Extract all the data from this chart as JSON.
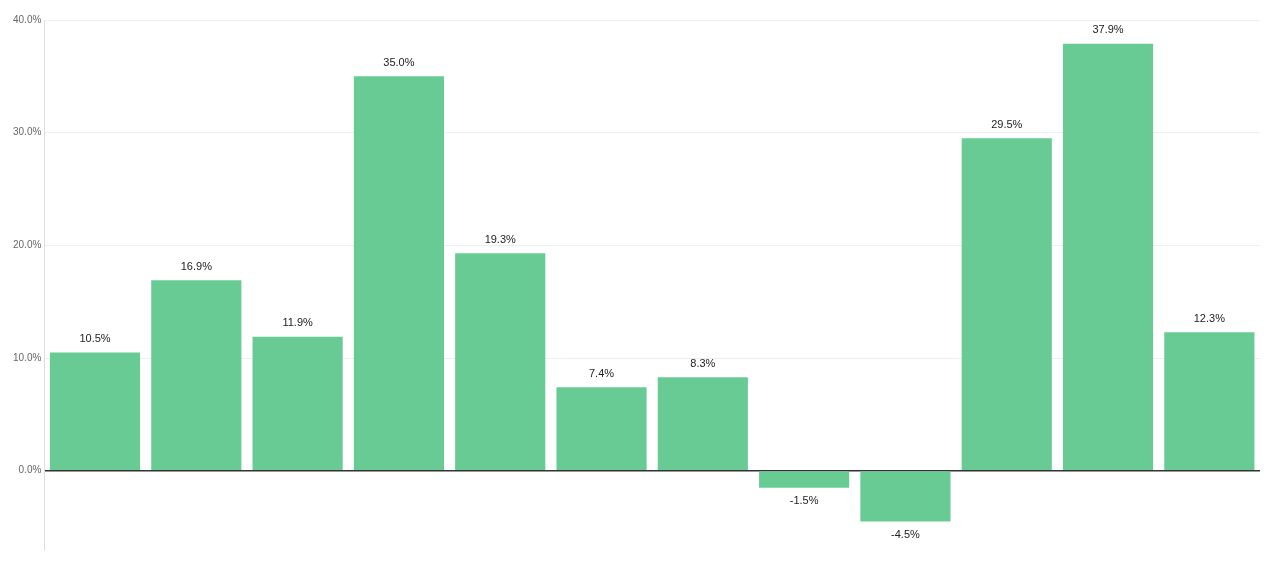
{
  "chart_data": {
    "type": "bar",
    "categories": [
      null,
      null,
      null,
      null,
      null,
      null,
      null,
      null,
      null,
      null,
      null,
      null
    ],
    "values": [
      10.5,
      16.9,
      11.9,
      35.0,
      19.3,
      7.4,
      8.3,
      -1.5,
      -4.5,
      29.5,
      37.9,
      12.3
    ],
    "value_labels": [
      "10.5%",
      "16.9%",
      "11.9%",
      "35.0%",
      "19.3%",
      "7.4%",
      "8.3%",
      "-1.5%",
      "-4.5%",
      "29.5%",
      "37.9%",
      "12.3%"
    ],
    "color": "#68cb94",
    "ylim": [
      -7,
      40
    ],
    "yticks": [
      {
        "value": 0,
        "label": "0.0%"
      },
      {
        "value": 10,
        "label": "10.0%"
      },
      {
        "value": 20,
        "label": "20.0%"
      },
      {
        "value": 30,
        "label": "30.0%"
      },
      {
        "value": 40,
        "label": "40.0%"
      }
    ],
    "grid": "y",
    "legend": false
  }
}
